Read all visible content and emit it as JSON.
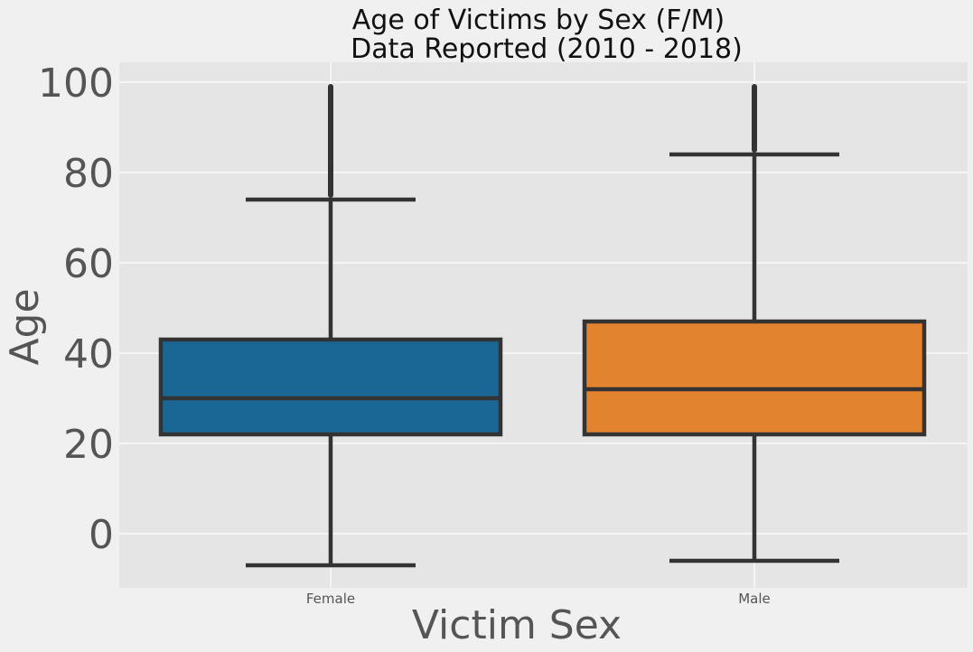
{
  "chart_data": {
    "type": "box",
    "title_lines": [
      "Age of Victims by Sex (F/M)",
      "Data Reported (2010 - 2018)"
    ],
    "xlabel": "Victim Sex",
    "ylabel": "Age",
    "ylim": [
      -12,
      104
    ],
    "yticks": [
      "0",
      "20",
      "40",
      "60",
      "80",
      "100"
    ],
    "grid": true,
    "categories": [
      "Female",
      "Male"
    ],
    "boxes": [
      {
        "category": "Female",
        "whisker_low": -7,
        "q1": 22,
        "median": 30,
        "q3": 43,
        "whisker_high": 74,
        "outliers_range": [
          75,
          99
        ],
        "color": "#1a6796"
      },
      {
        "category": "Male",
        "whisker_low": -6,
        "q1": 22,
        "median": 32,
        "q3": 47,
        "whisker_high": 84,
        "outliers_range": [
          85,
          99
        ],
        "color": "#e2832f"
      }
    ]
  },
  "colors": {
    "background": "#f0f0f0",
    "plot_background": "#e5e5e5",
    "grid": "#ffffff",
    "line": "#333333"
  }
}
